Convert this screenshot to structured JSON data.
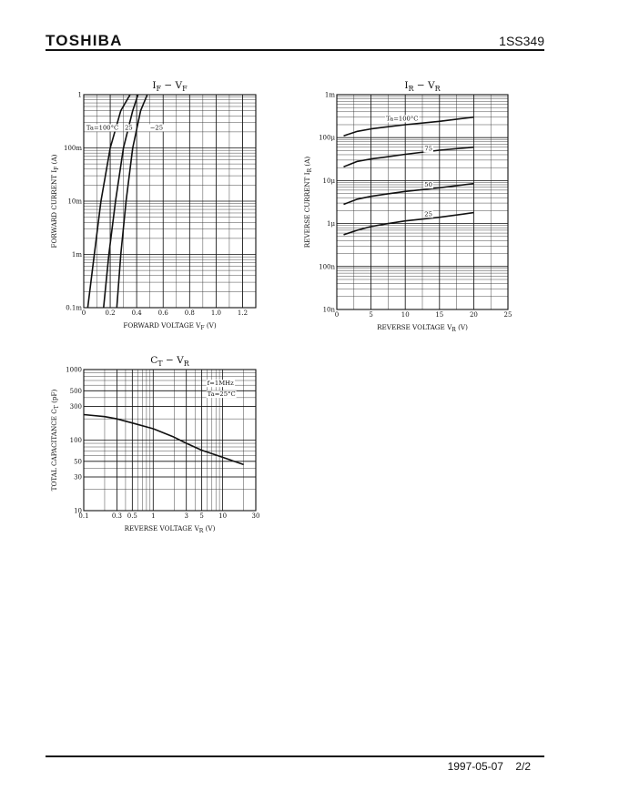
{
  "header": {
    "brand": "TOSHIBA",
    "part_number": "1SS349"
  },
  "footer": {
    "date": "1997-05-07",
    "page": "2/2"
  },
  "chart_data": [
    {
      "id": "if-vf",
      "type": "line",
      "title": {
        "main": "I",
        "sub1": "F",
        "mid": " − V",
        "sub2": "F"
      },
      "xlabel": {
        "main": "FORWARD VOLTAGE  V",
        "sub": "F",
        "unit": "(V)"
      },
      "ylabel": {
        "main": "FORWARD CURRENT  I",
        "sub": "F",
        "unit": "(A)"
      },
      "x_scale": "linear",
      "y_scale": "log",
      "xlim": [
        0,
        1.3
      ],
      "ylim": [
        0.0001,
        1
      ],
      "x_ticks": [
        0,
        0.2,
        0.4,
        0.6,
        0.8,
        1.0,
        1.2
      ],
      "x_tick_labels": [
        "0",
        "0.2",
        "0.4",
        "0.6",
        "0.8",
        "1.0",
        "1.2"
      ],
      "y_ticks": [
        0.0001,
        0.001,
        0.01,
        0.1,
        1
      ],
      "y_tick_labels": [
        "0.1m",
        "1m",
        "10m",
        "100m",
        "1"
      ],
      "grid": true,
      "series": [
        {
          "name": "Ta=100°C",
          "points": [
            [
              0.03,
              0.0001
            ],
            [
              0.08,
              0.001
            ],
            [
              0.13,
              0.01
            ],
            [
              0.2,
              0.1
            ],
            [
              0.28,
              0.5
            ],
            [
              0.35,
              1.0
            ]
          ]
        },
        {
          "name": "25",
          "points": [
            [
              0.15,
              0.0001
            ],
            [
              0.19,
              0.001
            ],
            [
              0.24,
              0.01
            ],
            [
              0.3,
              0.1
            ],
            [
              0.37,
              0.5
            ],
            [
              0.41,
              1.0
            ]
          ]
        },
        {
          "name": "−25",
          "points": [
            [
              0.25,
              0.0001
            ],
            [
              0.28,
              0.001
            ],
            [
              0.32,
              0.01
            ],
            [
              0.37,
              0.1
            ],
            [
              0.43,
              0.5
            ],
            [
              0.48,
              1.0
            ]
          ]
        }
      ],
      "annotations": [
        {
          "text": "Ta=100°C",
          "x": 0.02,
          "y": 0.22
        },
        {
          "text": "25",
          "x": 0.31,
          "y": 0.22
        },
        {
          "text": "−25",
          "x": 0.5,
          "y": 0.22
        }
      ]
    },
    {
      "id": "ir-vr",
      "type": "line",
      "title": {
        "main": "I",
        "sub1": "R",
        "mid": " − V",
        "sub2": "R"
      },
      "xlabel": {
        "main": "REVERSE VOLTAGE  V",
        "sub": "R",
        "unit": "(V)"
      },
      "ylabel": {
        "main": "REVERSE CURRENT  I",
        "sub": "R",
        "unit": "(A)"
      },
      "x_scale": "linear",
      "y_scale": "log",
      "xlim": [
        0,
        25
      ],
      "ylim": [
        1e-08,
        0.001
      ],
      "x_ticks": [
        0,
        5,
        10,
        15,
        20,
        25
      ],
      "x_tick_labels": [
        "0",
        "5",
        "10",
        "15",
        "20",
        "25"
      ],
      "y_ticks": [
        1e-08,
        1e-07,
        1e-06,
        1e-05,
        0.0001,
        0.001
      ],
      "y_tick_labels": [
        "10n",
        "100n",
        "1μ",
        "10μ",
        "100μ",
        "1m"
      ],
      "grid": true,
      "series": [
        {
          "name": "Ta=100°C",
          "points": [
            [
              1,
              0.00011
            ],
            [
              3,
              0.00014
            ],
            [
              5,
              0.00016
            ],
            [
              7,
              0.000175
            ],
            [
              10,
              0.0002
            ],
            [
              15,
              0.00024
            ],
            [
              20,
              0.0003
            ]
          ]
        },
        {
          "name": "75",
          "points": [
            [
              1,
              2.1e-05
            ],
            [
              3,
              2.8e-05
            ],
            [
              5,
              3.2e-05
            ],
            [
              7,
              3.5e-05
            ],
            [
              10,
              4.1e-05
            ],
            [
              15,
              5.1e-05
            ],
            [
              20,
              6e-05
            ]
          ]
        },
        {
          "name": "50",
          "points": [
            [
              1,
              2.8e-06
            ],
            [
              3,
              3.7e-06
            ],
            [
              5,
              4.3e-06
            ],
            [
              7,
              4.8e-06
            ],
            [
              10,
              5.6e-06
            ],
            [
              15,
              6.8e-06
            ],
            [
              20,
              8.5e-06
            ]
          ]
        },
        {
          "name": "25",
          "points": [
            [
              1,
              5.5e-07
            ],
            [
              3,
              7e-07
            ],
            [
              5,
              8.5e-07
            ],
            [
              7,
              9.7e-07
            ],
            [
              10,
              1.15e-06
            ],
            [
              15,
              1.4e-06
            ],
            [
              20,
              1.8e-06
            ]
          ]
        }
      ],
      "annotations": [
        {
          "text": "Ta=100°C",
          "x": 7.2,
          "y": 0.00025
        },
        {
          "text": "75",
          "x": 12.8,
          "y": 5e-05
        },
        {
          "text": "50",
          "x": 12.8,
          "y": 7.2e-06
        },
        {
          "text": "25",
          "x": 12.8,
          "y": 1.5e-06
        }
      ]
    },
    {
      "id": "ct-vr",
      "type": "line",
      "title": {
        "main": "C",
        "sub1": "T",
        "mid": " − V",
        "sub2": "R"
      },
      "xlabel": {
        "main": "REVERSE VOLTAGE  V",
        "sub": "R",
        "unit": "(V)"
      },
      "ylabel": {
        "main": "TOTAL CAPACITANCE  C",
        "sub": "T",
        "unit": "(pF)"
      },
      "x_scale": "log",
      "y_scale": "log",
      "xlim": [
        0.1,
        30
      ],
      "ylim": [
        10,
        1000
      ],
      "x_ticks": [
        0.1,
        0.3,
        0.5,
        1,
        3,
        5,
        10,
        30
      ],
      "x_tick_labels": [
        "0.1",
        "0.3",
        "0.5",
        "1",
        "3",
        "5",
        "10",
        "30"
      ],
      "y_ticks": [
        10,
        30,
        50,
        100,
        300,
        500,
        1000
      ],
      "y_tick_labels": [
        "10",
        "30",
        "50",
        "100",
        "300",
        "500",
        "1000"
      ],
      "grid": true,
      "series": [
        {
          "name": "",
          "points": [
            [
              0.1,
              230
            ],
            [
              0.2,
              215
            ],
            [
              0.3,
              200
            ],
            [
              0.5,
              175
            ],
            [
              1,
              145
            ],
            [
              2,
              110
            ],
            [
              3,
              90
            ],
            [
              5,
              72
            ],
            [
              10,
              57
            ],
            [
              20,
              45
            ]
          ]
        }
      ],
      "annotations": [
        {
          "text": "f=1MHz",
          "x": 6,
          "y": 600
        },
        {
          "text": "Ta=25°C",
          "x": 6,
          "y": 420
        }
      ]
    }
  ]
}
